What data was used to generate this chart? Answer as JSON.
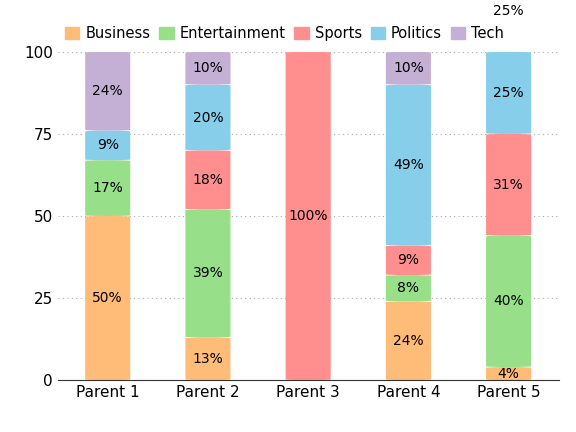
{
  "categories": [
    "Parent 1",
    "Parent 2",
    "Parent 3",
    "Parent 4",
    "Parent 5"
  ],
  "series": {
    "Business": [
      50,
      13,
      0,
      24,
      4
    ],
    "Entertainment": [
      17,
      39,
      0,
      8,
      40
    ],
    "Sports": [
      0,
      18,
      100,
      9,
      31
    ],
    "Politics": [
      9,
      20,
      0,
      49,
      25
    ],
    "Tech": [
      24,
      10,
      0,
      10,
      25
    ]
  },
  "colors": {
    "Business": "#FFBB78",
    "Entertainment": "#98DF8A",
    "Sports": "#FF8F8F",
    "Politics": "#87CEEB",
    "Tech": "#C5B0D5"
  },
  "legend_order": [
    "Business",
    "Entertainment",
    "Sports",
    "Politics",
    "Tech"
  ],
  "ylim": [
    0,
    100
  ],
  "yticks": [
    0,
    25,
    50,
    75,
    100
  ],
  "bar_width": 0.45,
  "label_fontsize": 10,
  "legend_fontsize": 10.5,
  "tick_fontsize": 11
}
